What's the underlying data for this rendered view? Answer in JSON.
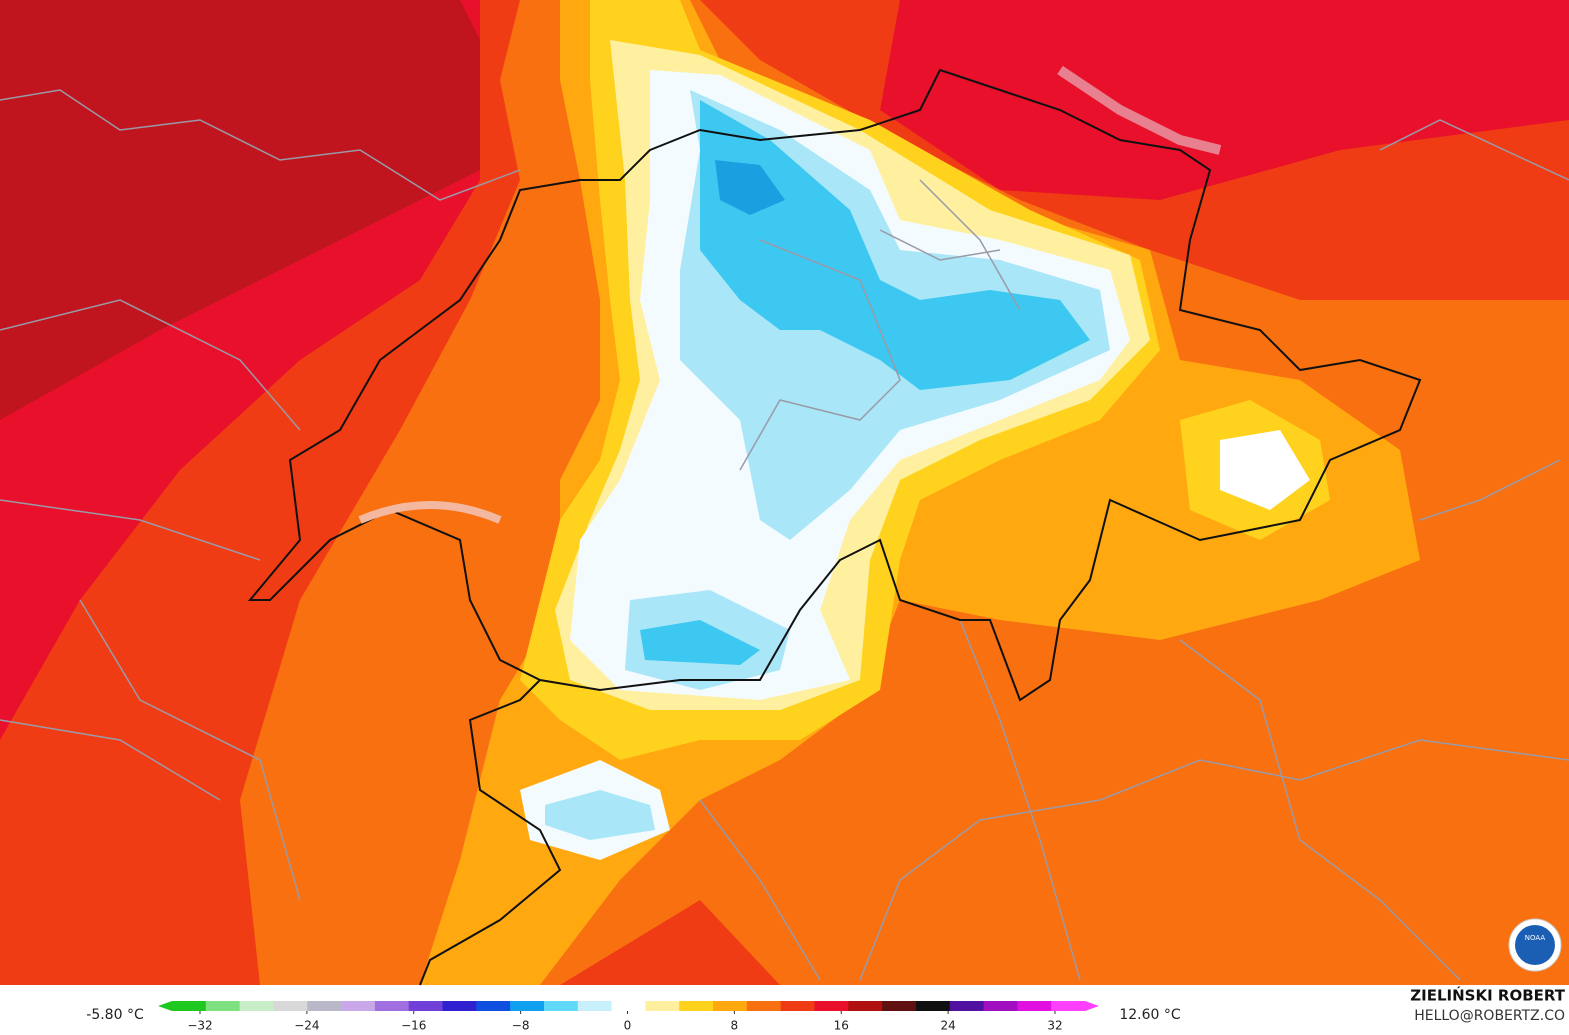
{
  "legend": {
    "min_label": "-5.80 °C",
    "max_label": "12.60 °C",
    "ticks": [
      "−32",
      "−24",
      "−16",
      "−8",
      "0",
      "8",
      "16",
      "24",
      "32"
    ],
    "colors": [
      "#1ec81e",
      "#7ee07e",
      "#c8eec8",
      "#d8d8d8",
      "#b8b8c8",
      "#c8a8e8",
      "#a070e0",
      "#7040d8",
      "#3020d0",
      "#1050e0",
      "#10a0f0",
      "#60d8f8",
      "#c8f0fc",
      "#ffffff",
      "#fff0a0",
      "#ffd21e",
      "#ffa810",
      "#f87010",
      "#f03c14",
      "#e8102a",
      "#b01010",
      "#601010",
      "#101010",
      "#5010a0",
      "#a010c0",
      "#e010e0",
      "#ff40ff"
    ]
  },
  "credit": {
    "name": "ZIELIŃSKI ROBERT",
    "contact": "HELLO@ROBERTZ.CO"
  },
  "logo": {
    "text": "NOAA"
  }
}
